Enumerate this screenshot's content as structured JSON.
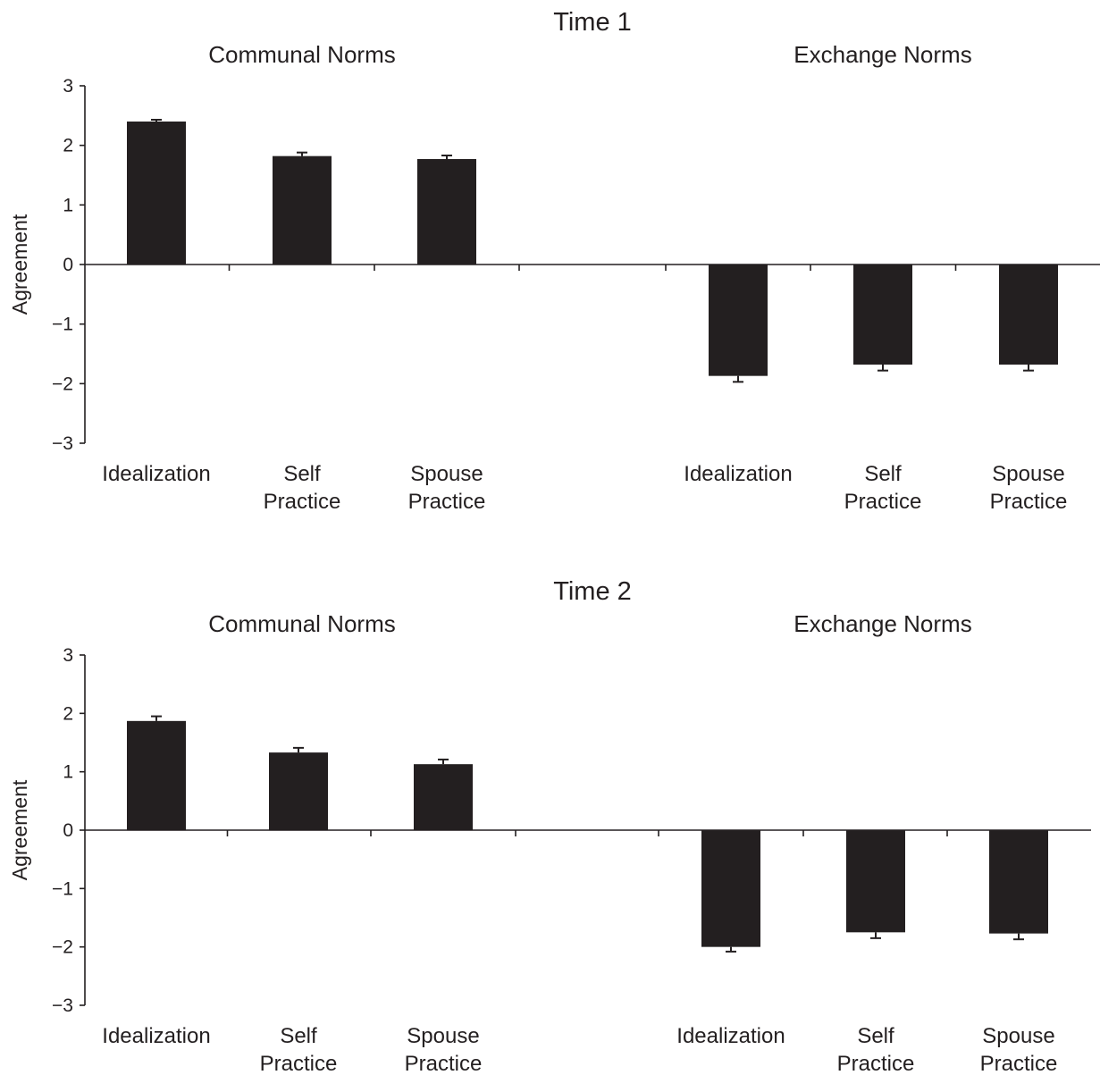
{
  "chart_data": [
    {
      "type": "bar",
      "title": "Time 1",
      "ylabel": "Agreement",
      "xlabel": "",
      "ylim": [
        -3,
        3
      ],
      "yticks": [
        "3",
        "2",
        "1",
        "0",
        "−1",
        "−2",
        "−3"
      ],
      "groups": [
        {
          "label": "Communal Norms",
          "categories": [
            [
              "Idealization"
            ],
            [
              "Self",
              "Practice"
            ],
            [
              "Spouse",
              "Practice"
            ]
          ],
          "values": [
            2.4,
            1.82,
            1.77
          ],
          "errors": [
            0.03,
            0.06,
            0.06
          ]
        },
        {
          "label": "Exchange Norms",
          "categories": [
            [
              "Idealization"
            ],
            [
              "Self",
              "Practice"
            ],
            [
              "Spouse",
              "Practice"
            ]
          ],
          "values": [
            -1.87,
            -1.68,
            -1.68
          ],
          "errors": [
            0.1,
            0.1,
            0.1
          ]
        }
      ]
    },
    {
      "type": "bar",
      "title": "Time 2",
      "ylabel": "Agreement",
      "xlabel": "",
      "ylim": [
        -3,
        3
      ],
      "yticks": [
        "3",
        "2",
        "1",
        "0",
        "−1",
        "−2",
        "−3"
      ],
      "groups": [
        {
          "label": "Communal Norms",
          "categories": [
            [
              "Idealization"
            ],
            [
              "Self",
              "Practice"
            ],
            [
              "Spouse",
              "Practice"
            ]
          ],
          "values": [
            1.87,
            1.33,
            1.13
          ],
          "errors": [
            0.08,
            0.08,
            0.08
          ]
        },
        {
          "label": "Exchange Norms",
          "categories": [
            [
              "Idealization"
            ],
            [
              "Self",
              "Practice"
            ],
            [
              "Spouse",
              "Practice"
            ]
          ],
          "values": [
            -2.0,
            -1.75,
            -1.77
          ],
          "errors": [
            0.08,
            0.1,
            0.1
          ]
        }
      ]
    }
  ]
}
